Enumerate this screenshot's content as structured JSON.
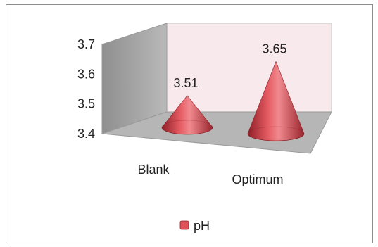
{
  "chart_data": {
    "type": "bar",
    "shape": "cone",
    "three_d": true,
    "categories": [
      "Blank",
      "Optimum"
    ],
    "series": [
      {
        "name": "pH",
        "values": [
          3.51,
          3.65
        ],
        "color": "#e0535a"
      }
    ],
    "ylim": [
      3.4,
      3.7
    ],
    "yticks": [
      "3.4",
      "3.5",
      "3.6",
      "3.7"
    ],
    "data_labels": [
      "3.51",
      "3.65"
    ],
    "legend": {
      "position": "bottom",
      "entries": [
        "pH"
      ]
    },
    "grid": false,
    "title": "",
    "xlabel": "",
    "ylabel": "",
    "colors": {
      "back_wall": "#f7e9ec",
      "side_wall": "#a7a7a7",
      "floor": "#b6b6b6",
      "frame_border": "#8c8c8c"
    }
  }
}
